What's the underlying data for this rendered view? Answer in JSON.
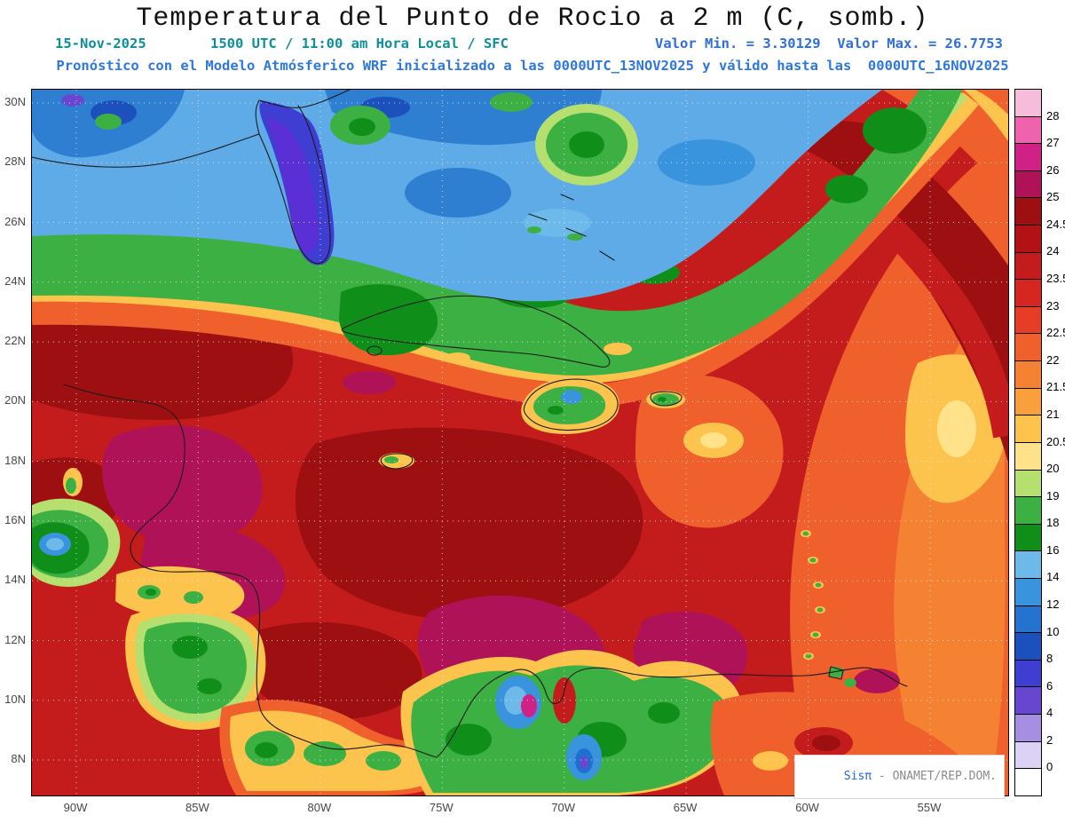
{
  "header": {
    "title": "Temperatura del Punto de Rocio a 2 m (C, somb.)",
    "date": "15-Nov-2025",
    "time_line": "1500 UTC / 11:00 am Hora Local / SFC",
    "minmax_line": "Valor Min. = 3.30129  Valor Max. = 26.7753",
    "forecast_line": "Pronóstico con el Modelo Atmósferico WRF inicializado a las 0000UTC_13NOV2025 y válido hasta las  0000UTC_16NOV2025"
  },
  "axes": {
    "lat_labels": [
      "30N",
      "28N",
      "26N",
      "24N",
      "22N",
      "20N",
      "18N",
      "16N",
      "14N",
      "12N",
      "10N",
      "8N"
    ],
    "lon_labels": [
      "90W",
      "85W",
      "80W",
      "75W",
      "70W",
      "65W",
      "60W",
      "55W"
    ]
  },
  "colorbar": {
    "labels": [
      "28",
      "27",
      "26",
      "25",
      "24.5",
      "24",
      "23.5",
      "23",
      "22.5",
      "22",
      "21.5",
      "21",
      "20.5",
      "20",
      "19",
      "18",
      "16",
      "14",
      "12",
      "10",
      "8",
      "6",
      "4",
      "2",
      "0"
    ],
    "segment_colors": [
      "#f7bcd9",
      "#ef62ae",
      "#d02186",
      "#b01258",
      "#9e0f12",
      "#b31215",
      "#c41c1c",
      "#d6261f",
      "#e73c25",
      "#f0602c",
      "#f58233",
      "#f9a03c",
      "#fcc34d",
      "#ffe28a",
      "#b5df6e",
      "#3cb043",
      "#0f8f1a",
      "#6cb9ea",
      "#3a93dd",
      "#2373cf",
      "#1b50bd",
      "#3e3ed2",
      "#6747cf",
      "#a68fe3",
      "#dcd2f6",
      "#ffffff"
    ]
  },
  "watermark": {
    "brand": "Sisπ",
    "rest": " - ONAMET/REP.DOM."
  },
  "chart_data": {
    "type": "heatmap",
    "subtype": "filled-contour weather map",
    "title": "Temperatura del Punto de Rocio a 2 m (C, somb.)",
    "variable": "dew point temperature at 2 m",
    "units": "C",
    "valid_date": "15-Nov-2025",
    "valid_time": "1500 UTC / 11:00 am Hora Local / SFC",
    "level": "SFC",
    "model": "WRF",
    "initialized": "0000UTC_13NOV2025",
    "valid_until": "0000UTC_16NOV2025",
    "value_min": 3.30129,
    "value_max": 26.7753,
    "x_ticks": [
      "90W",
      "85W",
      "80W",
      "75W",
      "70W",
      "65W",
      "60W",
      "55W"
    ],
    "y_ticks": [
      "30N",
      "28N",
      "26N",
      "24N",
      "22N",
      "20N",
      "18N",
      "16N",
      "14N",
      "12N",
      "10N",
      "8N"
    ],
    "lon_range": [
      "92W",
      "52W"
    ],
    "lat_range": [
      "7N",
      "30.5N"
    ],
    "contour_levels_c": [
      0,
      2,
      4,
      6,
      8,
      10,
      12,
      14,
      16,
      18,
      19,
      20,
      20.5,
      21,
      21.5,
      22,
      22.5,
      23,
      23.5,
      24,
      24.5,
      25,
      26,
      27,
      28
    ],
    "features": [
      "Dry air (dew points ~4-16 C, blue/purple shading) over Florida, the northern Gulf of Mexico and the western Atlantic",
      "Green transition band (18-21 C) across Cuba and the Bahamas",
      "Very moist air (23-26 C, red/magenta shading) over the Caribbean Sea and Central America",
      "Orange 21-23 C air over the tropical Atlantic east of the Lesser Antilles",
      "Local dew point minima over the mountains of Hispaniola, Central America and northern Colombia (map minimum 3.30129 C)"
    ]
  }
}
